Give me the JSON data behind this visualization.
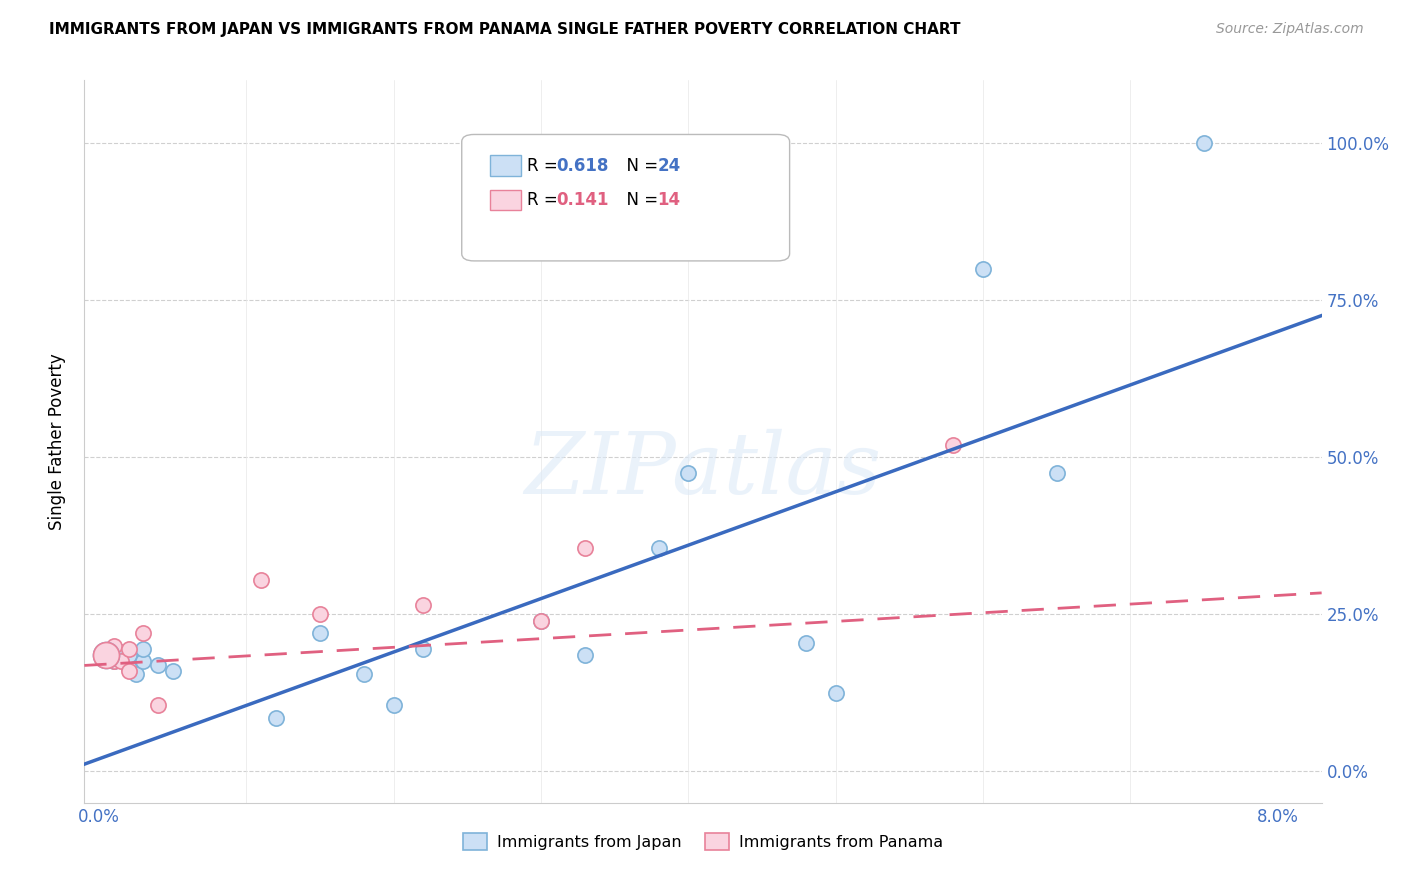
{
  "title": "IMMIGRANTS FROM JAPAN VS IMMIGRANTS FROM PANAMA SINGLE FATHER POVERTY CORRELATION CHART",
  "source": "Source: ZipAtlas.com",
  "ylabel": "Single Father Poverty",
  "legend_japan": "Immigrants from Japan",
  "legend_panama": "Immigrants from Panama",
  "r_japan": 0.618,
  "n_japan": 24,
  "r_panama": 0.141,
  "n_panama": 14,
  "japan_x": [
    0.0005,
    0.001,
    0.0015,
    0.002,
    0.002,
    0.0025,
    0.003,
    0.003,
    0.004,
    0.005,
    0.012,
    0.015,
    0.018,
    0.02,
    0.022,
    0.03,
    0.033,
    0.038,
    0.04,
    0.048,
    0.05,
    0.06,
    0.065,
    0.075
  ],
  "japan_y": [
    0.185,
    0.175,
    0.19,
    0.165,
    0.185,
    0.155,
    0.175,
    0.195,
    0.17,
    0.16,
    0.085,
    0.22,
    0.155,
    0.105,
    0.195,
    0.24,
    0.185,
    0.355,
    0.475,
    0.205,
    0.125,
    0.8,
    0.475,
    1.0
  ],
  "panama_x": [
    0.0005,
    0.001,
    0.001,
    0.0015,
    0.002,
    0.002,
    0.003,
    0.004,
    0.011,
    0.015,
    0.022,
    0.03,
    0.033,
    0.058
  ],
  "panama_y": [
    0.185,
    0.175,
    0.2,
    0.175,
    0.195,
    0.16,
    0.22,
    0.105,
    0.305,
    0.25,
    0.265,
    0.24,
    0.355,
    0.52
  ],
  "japan_color": "#cce0f5",
  "japan_edge": "#7fb3d9",
  "panama_color": "#fad4e0",
  "panama_edge": "#e8829a",
  "trend_japan_color": "#3a6abf",
  "trend_panama_color": "#e06080",
  "ytick_labels": [
    "0.0%",
    "25.0%",
    "50.0%",
    "75.0%",
    "100.0%"
  ],
  "ytick_values": [
    0.0,
    0.25,
    0.5,
    0.75,
    1.0
  ],
  "watermark": "ZIPatlas",
  "xlim": [
    -0.001,
    0.083
  ],
  "ylim": [
    -0.05,
    1.1
  ]
}
